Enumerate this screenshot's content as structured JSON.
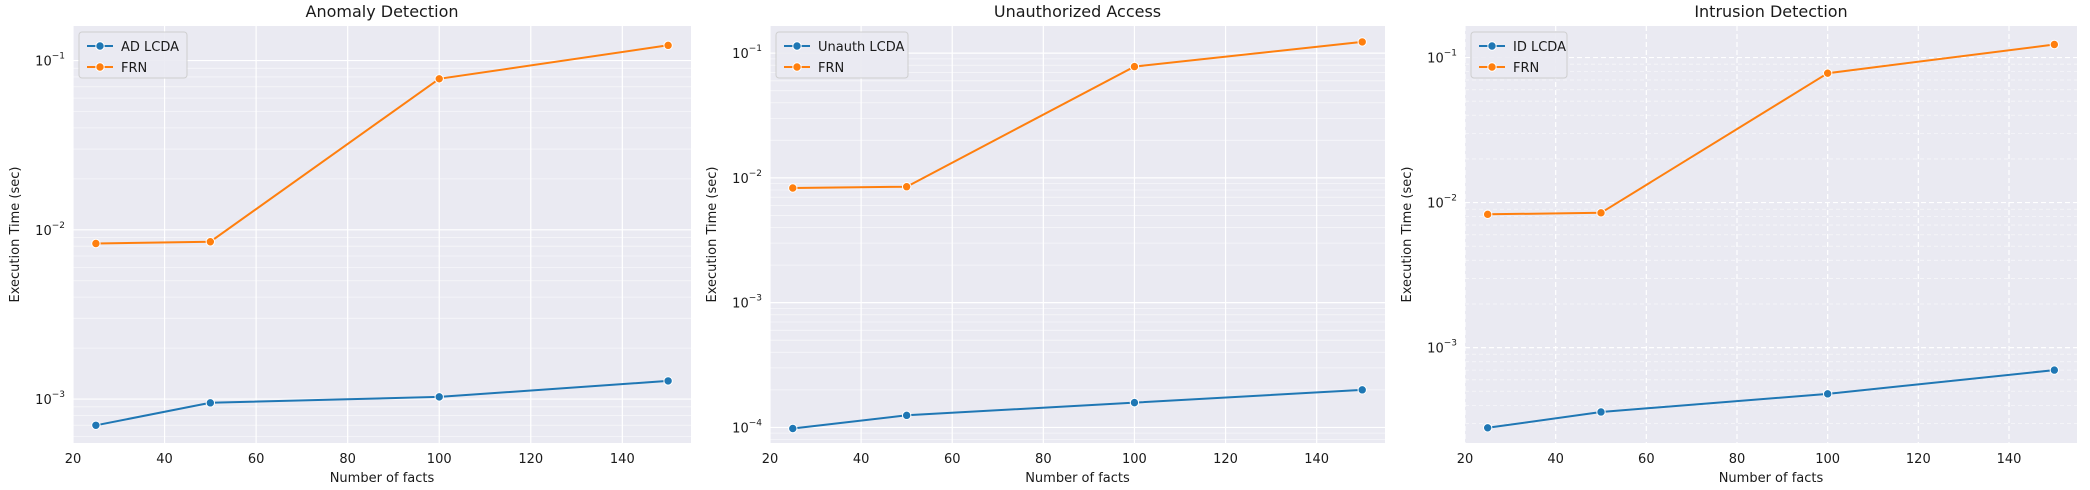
{
  "chart_data": [
    {
      "type": "line",
      "title": "Anomaly Detection",
      "xlabel": "Number of facts",
      "ylabel": "Execution Time (sec)",
      "x": [
        25,
        50,
        100,
        150
      ],
      "xlim": [
        20,
        155
      ],
      "xticks": [
        20,
        40,
        60,
        80,
        100,
        120,
        140
      ],
      "yscale": "log",
      "ylim": [
        0.00055,
        0.16
      ],
      "yticks": [
        0.001,
        0.01,
        0.1
      ],
      "ytick_labels": [
        {
          "base": "10",
          "exp": "−3"
        },
        {
          "base": "10",
          "exp": "−2"
        },
        {
          "base": "10",
          "exp": "−1"
        }
      ],
      "grid": true,
      "legend": "top-left",
      "series": [
        {
          "name": "AD LCDA",
          "color": "#1f77b4",
          "values": [
            0.0007,
            0.00095,
            0.00103,
            0.00128
          ]
        },
        {
          "name": "FRN",
          "color": "#ff7f0e",
          "values": [
            0.0083,
            0.0085,
            0.078,
            0.123
          ]
        }
      ]
    },
    {
      "type": "line",
      "title": "Unauthorized Access",
      "xlabel": "Number of facts",
      "ylabel": "Execution Time (sec)",
      "x": [
        25,
        50,
        100,
        150
      ],
      "xlim": [
        20,
        155
      ],
      "xticks": [
        20,
        40,
        60,
        80,
        100,
        120,
        140
      ],
      "yscale": "log",
      "ylim": [
        7.5e-05,
        0.165
      ],
      "yticks": [
        0.0001,
        0.001,
        0.01,
        0.1
      ],
      "ytick_labels": [
        {
          "base": "10",
          "exp": "−4"
        },
        {
          "base": "10",
          "exp": "−3"
        },
        {
          "base": "10",
          "exp": "−2"
        },
        {
          "base": "10",
          "exp": "−1"
        }
      ],
      "grid": true,
      "legend": "top-left",
      "series": [
        {
          "name": "Unauth LCDA",
          "color": "#1f77b4",
          "values": [
            9.8e-05,
            0.000125,
            0.000158,
            0.0002
          ]
        },
        {
          "name": "FRN",
          "color": "#ff7f0e",
          "values": [
            0.0083,
            0.0085,
            0.078,
            0.123
          ]
        }
      ]
    },
    {
      "type": "line",
      "title": "Intrusion Detection",
      "xlabel": "Number of facts",
      "ylabel": "Execution Time (sec)",
      "x": [
        25,
        50,
        100,
        150
      ],
      "xlim": [
        20,
        155
      ],
      "xticks": [
        20,
        40,
        60,
        80,
        100,
        120,
        140
      ],
      "yscale": "log",
      "ylim": [
        0.00022,
        0.165
      ],
      "yticks": [
        0.001,
        0.01,
        0.1
      ],
      "ytick_labels": [
        {
          "base": "10",
          "exp": "−3"
        },
        {
          "base": "10",
          "exp": "−2"
        },
        {
          "base": "10",
          "exp": "−1"
        }
      ],
      "grid": true,
      "legend": "top-left",
      "series": [
        {
          "name": "ID LCDA",
          "color": "#1f77b4",
          "values": [
            0.00028,
            0.00036,
            0.00048,
            0.0007
          ]
        },
        {
          "name": "FRN",
          "color": "#ff7f0e",
          "values": [
            0.0083,
            0.0085,
            0.078,
            0.123
          ]
        }
      ]
    }
  ]
}
